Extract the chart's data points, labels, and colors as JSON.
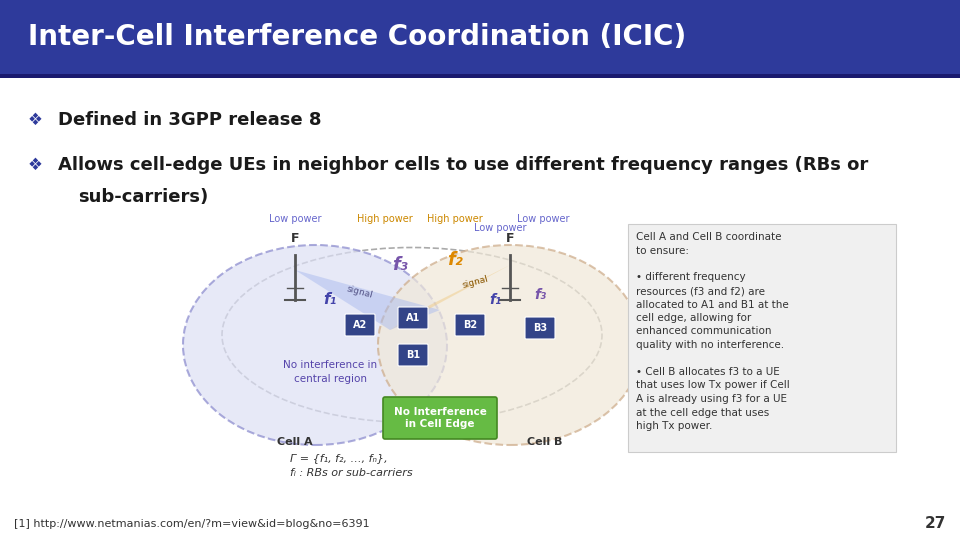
{
  "title": "Inter-Cell Interference Coordination (ICIC)",
  "title_bg_color": "#2E3A9B",
  "title_text_color": "#FFFFFF",
  "slide_bg_color": "#FFFFFF",
  "bullet1": "Defined in 3GPP release 8",
  "bullet2_part1": "Allows cell-edge UEs in neighbor cells to use different frequency ranges (RBs or",
  "bullet2_part2": "sub-carriers)",
  "footer_ref": "[1] http://www.netmanias.com/en/?m=view&id=blog&no=6391",
  "page_number": "27",
  "bullet_color": "#2E3A9B",
  "text_color": "#1a1a1a",
  "font_size_title": 20,
  "font_size_bullet": 13,
  "font_size_footer": 8,
  "title_bar_height": 0.138,
  "title_stripe_color": "#1a237e"
}
